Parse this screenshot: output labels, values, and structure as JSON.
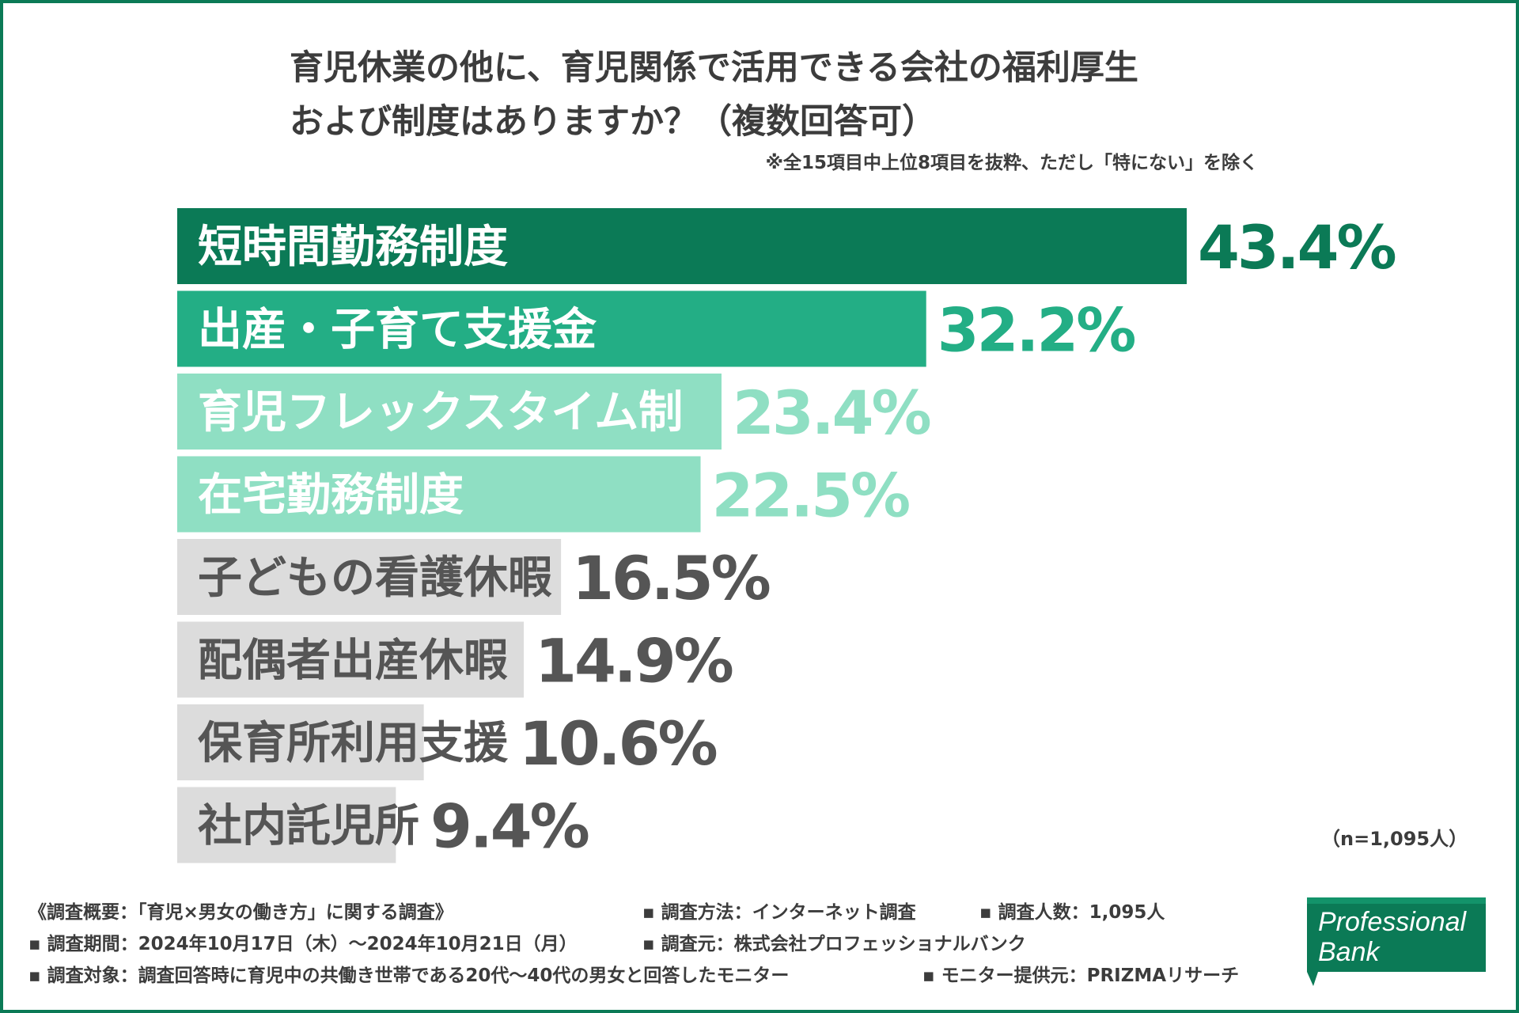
{
  "header": {
    "title_line1": "育児休業の他に、育児関係で活用できる会社の福利厚生",
    "title_line2": "および制度はありますか？（複数回答可）",
    "note": "※全15項目中上位8項目を抜粋、ただし「特にない」を除く"
  },
  "chart_data": {
    "type": "bar",
    "orientation": "horizontal",
    "categories": [
      "短時間勤務制度",
      "出産・子育て支援金",
      "育児フレックスタイム制",
      "在宅勤務制度",
      "子どもの看護休暇",
      "配偶者出産休暇",
      "保育所利用支援",
      "社内託児所"
    ],
    "values": [
      43.4,
      32.2,
      23.4,
      22.5,
      16.5,
      14.9,
      10.6,
      9.4
    ],
    "value_labels": [
      "43.4%",
      "32.2%",
      "23.4%",
      "22.5%",
      "16.5%",
      "14.9%",
      "10.6%",
      "9.4%"
    ],
    "unit": "%",
    "xlim": [
      0,
      50
    ],
    "bar_colors": [
      "#0b7a56",
      "#23ae85",
      "#8fdfc3",
      "#8fdfc3",
      "#dcdcdc",
      "#dcdcdc",
      "#dcdcdc",
      "#dcdcdc"
    ],
    "label_colors": [
      "#ffffff",
      "#ffffff",
      "#ffffff",
      "#ffffff",
      "#555555",
      "#555555",
      "#555555",
      "#555555"
    ],
    "value_colors": [
      "#0b7a56",
      "#23ae85",
      "#8fdfc3",
      "#8fdfc3",
      "#555555",
      "#555555",
      "#555555",
      "#555555"
    ],
    "grid": false,
    "legend": "none"
  },
  "sample_size": "（n=1,095人）",
  "footer": {
    "overview": "《調査概要：「育児×男女の働き方」に関する調査》",
    "method": "▪ 調査方法：インターネット調査",
    "count": "▪ 調査人数：1,095人",
    "period": "▪ 調査期間：2024年10月17日（木）～2024年10月21日（月）",
    "source": "▪ 調査元：株式会社プロフェッショナルバンク",
    "target": "▪ 調査対象：調査回答時に育児中の共働き世帯である20代～40代の男女と回答したモニター",
    "provider": "▪ モニター提供元：PRIZMAリサーチ"
  },
  "logo": {
    "line1": "Professional",
    "line2": "Bank",
    "color": "#0b7a56"
  }
}
